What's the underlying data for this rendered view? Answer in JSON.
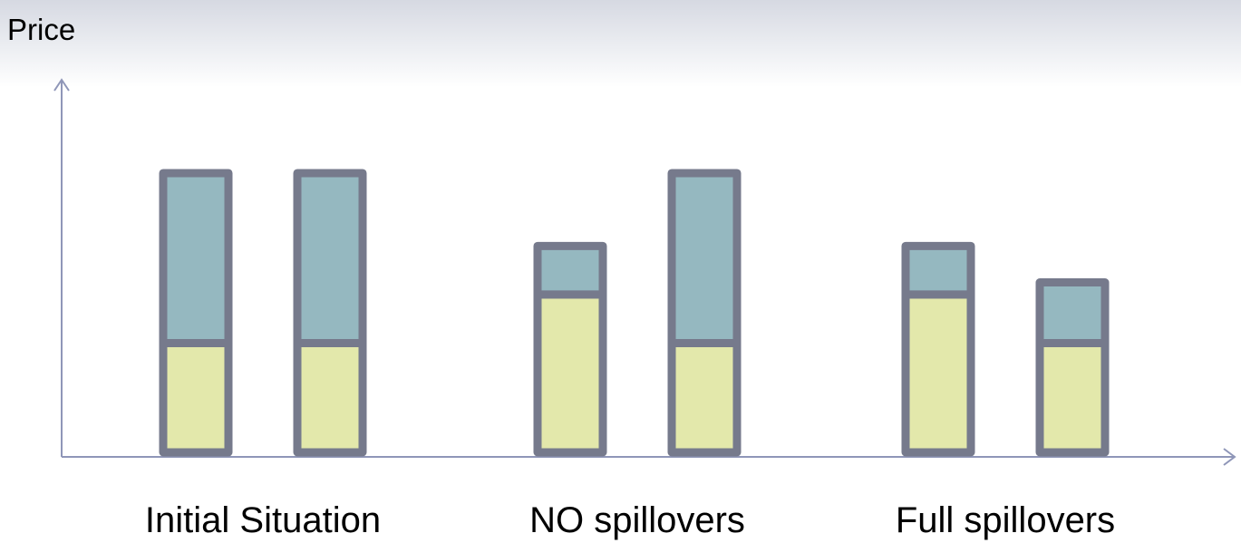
{
  "chart_data": {
    "type": "bar",
    "stacked": true,
    "ylabel": "Price",
    "xlabel": "",
    "title": "",
    "ylim": [
      0,
      14
    ],
    "grid": false,
    "legend": "none",
    "groups": [
      {
        "label": "Initial Situation",
        "bars": [
          {
            "bottom": 4.5,
            "top": 7
          },
          {
            "bottom": 4.5,
            "top": 7
          }
        ]
      },
      {
        "label": "NO spillovers",
        "bars": [
          {
            "bottom": 6.5,
            "top": 2
          },
          {
            "bottom": 4.5,
            "top": 7
          }
        ]
      },
      {
        "label": "Full spillovers",
        "bars": [
          {
            "bottom": 6.5,
            "top": 2
          },
          {
            "bottom": 4.5,
            "top": 2.5
          }
        ]
      }
    ],
    "colors": {
      "bottom_fill": "#e3e8ab",
      "top_fill": "#95b8c0",
      "outline": "#767a8c",
      "axis": "#8f96b8"
    }
  }
}
